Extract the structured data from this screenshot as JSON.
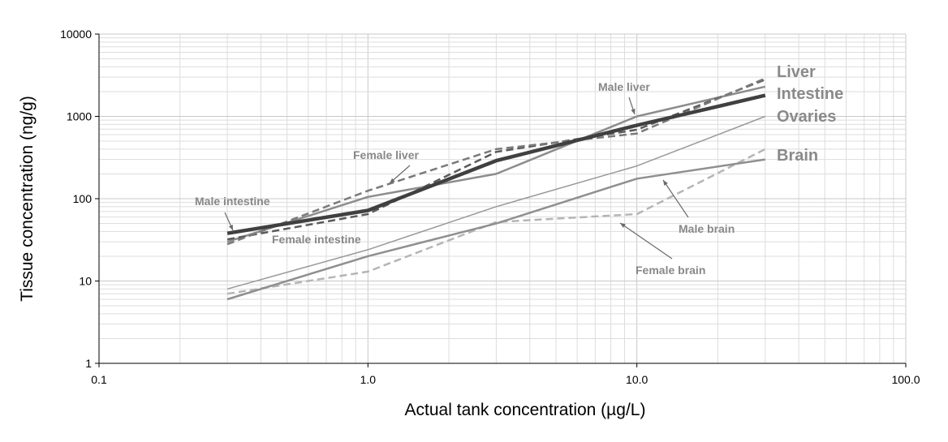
{
  "chart_data": {
    "type": "line",
    "xlabel": "Actual tank concentration (µg/L)",
    "ylabel": "Tissue concentration (ng/g)",
    "xscale": "log",
    "yscale": "log",
    "xlim": [
      0.1,
      100
    ],
    "ylim": [
      1,
      10000
    ],
    "grid": true,
    "x_tick_labels": [
      "0.1",
      "1.0",
      "10.0",
      "100.0"
    ],
    "y_tick_labels": [
      "1",
      "10",
      "100",
      "1000",
      "10000"
    ],
    "series": [
      {
        "name": "Male liver",
        "color": "#8c8c8c",
        "style": "solid",
        "width": 2.5,
        "x": [
          0.3,
          1.0,
          3.0,
          10.0,
          30.0
        ],
        "y": [
          30,
          105,
          200,
          1000,
          2300
        ]
      },
      {
        "name": "Female liver",
        "color": "#7a7a7a",
        "style": "dashed",
        "width": 2.5,
        "x": [
          0.3,
          1.0,
          3.0,
          10.0,
          30.0
        ],
        "y": [
          28,
          125,
          400,
          620,
          2900
        ]
      },
      {
        "name": "Male intestine",
        "color": "#404040",
        "style": "solid",
        "width": 4.5,
        "x": [
          0.3,
          1.0,
          3.0,
          10.0,
          30.0
        ],
        "y": [
          38,
          72,
          290,
          780,
          1800
        ]
      },
      {
        "name": "Female intestine",
        "color": "#5a5a5a",
        "style": "dashed",
        "width": 2.5,
        "x": [
          0.3,
          1.0,
          3.0,
          10.0,
          30.0
        ],
        "y": [
          32,
          65,
          370,
          690,
          2800
        ]
      },
      {
        "name": "Ovaries",
        "color": "#999999",
        "style": "solid",
        "width": 1.5,
        "x": [
          0.3,
          1.0,
          3.0,
          10.0,
          30.0
        ],
        "y": [
          8,
          24,
          80,
          250,
          1000
        ]
      },
      {
        "name": "Male brain",
        "color": "#8f8f8f",
        "style": "solid",
        "width": 2.5,
        "x": [
          0.3,
          1.0,
          3.0,
          10.0,
          30.0
        ],
        "y": [
          6,
          20,
          50,
          175,
          300
        ]
      },
      {
        "name": "Female brain",
        "color": "#b5b5b5",
        "style": "dashed",
        "width": 2.5,
        "x": [
          0.3,
          1.0,
          3.0,
          10.0,
          30.0
        ],
        "y": [
          7,
          13,
          52,
          65,
          400
        ]
      }
    ],
    "group_labels": [
      "Liver",
      "Intestine",
      "Ovaries",
      "Brain"
    ],
    "annotations": [
      {
        "text": "Male liver",
        "arrow": true
      },
      {
        "text": "Female liver",
        "arrow": true
      },
      {
        "text": "Male intestine",
        "arrow": true
      },
      {
        "text": "Female intestine",
        "arrow": false
      },
      {
        "text": "Male brain",
        "arrow": true
      },
      {
        "text": "Female brain",
        "arrow": true
      }
    ]
  }
}
